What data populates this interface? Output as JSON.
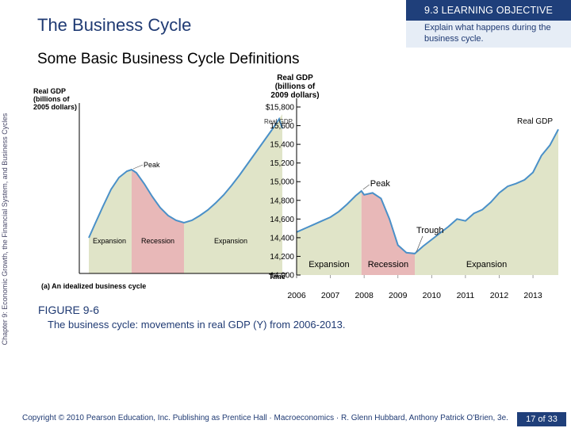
{
  "side_label": "Chapter 9: Economic Growth, the Financial System, and Business Cycles",
  "page_title": "The Business Cycle",
  "objective": {
    "header": "9.3 LEARNING OBJECTIVE",
    "text": "Explain what happens during the business cycle."
  },
  "subtitle": "Some Basic Business Cycle Definitions",
  "figure": {
    "label": "FIGURE 9-6",
    "caption": "The business cycle:  movements in real GDP (Y) from 2006-2013."
  },
  "footer": {
    "copyright": "Copyright © 2010 Pearson Education, Inc. Publishing as Prentice Hall · Macroeconomics · R. Glenn Hubbard, Anthony Patrick O'Brien, 3e.",
    "page": "17 of 33"
  },
  "colors": {
    "expansion": "#e0e4c8",
    "recession": "#e8b8b8",
    "line": "#4a90c8",
    "accent": "#1f3f7a"
  },
  "chart_data": [
    {
      "type": "line",
      "title": "(a)  An idealized business cycle",
      "ylabel": "Real GDP\n(billions of\n2005 dollars)",
      "xlabel": "Time",
      "line_label": "Real GDP",
      "annotations": [
        "Peak"
      ],
      "phases": [
        "Expansion",
        "Recession",
        "Expansion"
      ]
    },
    {
      "type": "line",
      "ylabel": "Real GDP\n(billions of\n2009 dollars)",
      "line_label": "Real GDP",
      "y_ticks": [
        "$15,800",
        "15,600",
        "15,400",
        "15,200",
        "15,000",
        "14,800",
        "14,600",
        "14,400",
        "14,200",
        "14,000"
      ],
      "ylim": [
        14000,
        15800
      ],
      "x_ticks": [
        "2006",
        "2007",
        "2008",
        "2009",
        "2010",
        "2011",
        "2012",
        "2013"
      ],
      "xlim": [
        2006,
        2013.75
      ],
      "phases": [
        {
          "label": "Expansion",
          "start": 2006,
          "end": 2007.92
        },
        {
          "label": "Recession",
          "start": 2007.92,
          "end": 2009.5
        },
        {
          "label": "Expansion",
          "start": 2009.5,
          "end": 2013.75
        }
      ],
      "annotations": [
        {
          "label": "Peak",
          "x": 2007.92
        },
        {
          "label": "Trough",
          "x": 2009.5
        }
      ],
      "x": [
        2006.0,
        2006.25,
        2006.5,
        2006.75,
        2007.0,
        2007.25,
        2007.5,
        2007.75,
        2007.92,
        2008.0,
        2008.25,
        2008.5,
        2008.75,
        2009.0,
        2009.25,
        2009.5,
        2009.75,
        2010.0,
        2010.25,
        2010.5,
        2010.75,
        2011.0,
        2011.25,
        2011.5,
        2011.75,
        2012.0,
        2012.25,
        2012.5,
        2012.75,
        2013.0,
        2013.25,
        2013.5,
        2013.75
      ],
      "y": [
        14460,
        14500,
        14540,
        14580,
        14620,
        14680,
        14760,
        14850,
        14900,
        14860,
        14880,
        14820,
        14600,
        14320,
        14240,
        14230,
        14310,
        14380,
        14450,
        14520,
        14600,
        14580,
        14660,
        14700,
        14780,
        14880,
        14950,
        14980,
        15020,
        15100,
        15280,
        15390,
        15560
      ]
    }
  ]
}
